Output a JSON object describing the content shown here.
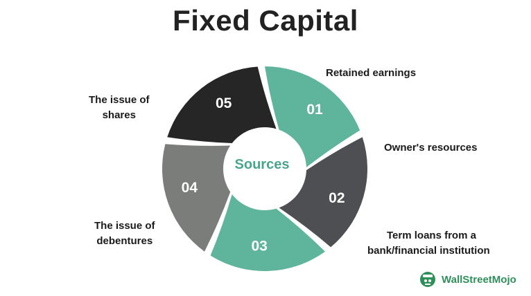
{
  "title": "Fixed Capital",
  "center_label": "Sources",
  "segments": [
    {
      "number": "01",
      "label": "Retained earnings",
      "color": "#5fb59c"
    },
    {
      "number": "02",
      "label": "Owner's resources",
      "color": "#4d4f52"
    },
    {
      "number": "03",
      "label_lines": [
        "Term loans from a",
        "bank/financial institution"
      ],
      "color": "#5fb59c"
    },
    {
      "number": "04",
      "label_lines": [
        "The issue of",
        "debentures"
      ],
      "color": "#7b7d7b"
    },
    {
      "number": "05",
      "label_lines": [
        "The issue of",
        "shares"
      ],
      "color": "#262626"
    }
  ],
  "colors": {
    "center_text": "#4aa58c",
    "brand_text": "#2f8f5a"
  },
  "brand": {
    "name": "WallStreetMojo",
    "icon": "wallstreetmojo-logo-icon"
  }
}
